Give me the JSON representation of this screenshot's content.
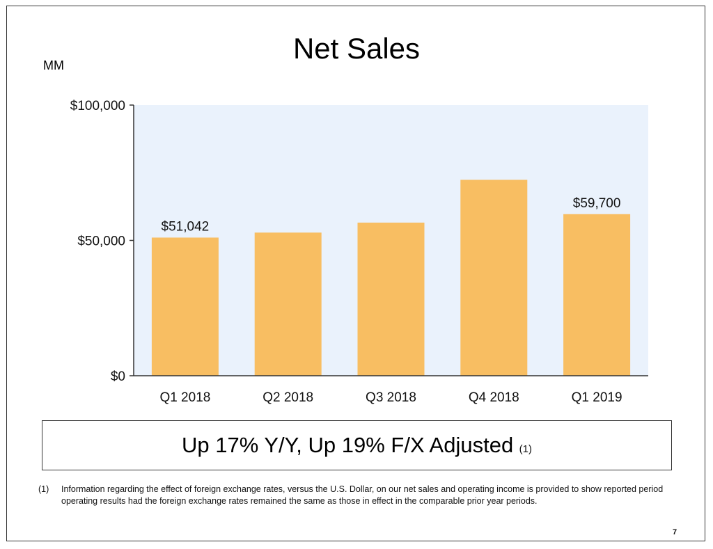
{
  "slide": {
    "title": "Net Sales",
    "unit_label": "MM",
    "summary_text": "Up 17% Y/Y, Up 19% F/X Adjusted",
    "summary_ref": "(1)",
    "footnote_number": "(1)",
    "footnote_text": "Information regarding the effect of foreign exchange rates, versus the U.S. Dollar, on our net sales and operating income is provided to show reported period operating results had the foreign exchange rates remained the same as those in effect in the comparable prior year periods.",
    "page_number": "7"
  },
  "chart_data": {
    "type": "bar",
    "categories": [
      "Q1 2018",
      "Q2 2018",
      "Q3 2018",
      "Q4 2018",
      "Q1 2019"
    ],
    "values": [
      51042,
      52886,
      56576,
      72383,
      59700
    ],
    "data_labels": [
      "$51,042",
      "",
      "",
      "",
      "$59,700"
    ],
    "ylim": [
      0,
      100000
    ],
    "yticks": [
      0,
      50000,
      100000
    ],
    "ytick_labels": [
      "$0",
      "$50,000",
      "$100,000"
    ],
    "grid": false,
    "colors": {
      "bar": "#F8BE62",
      "plot_background": "#EAF2FC",
      "axis": "#333333"
    }
  }
}
